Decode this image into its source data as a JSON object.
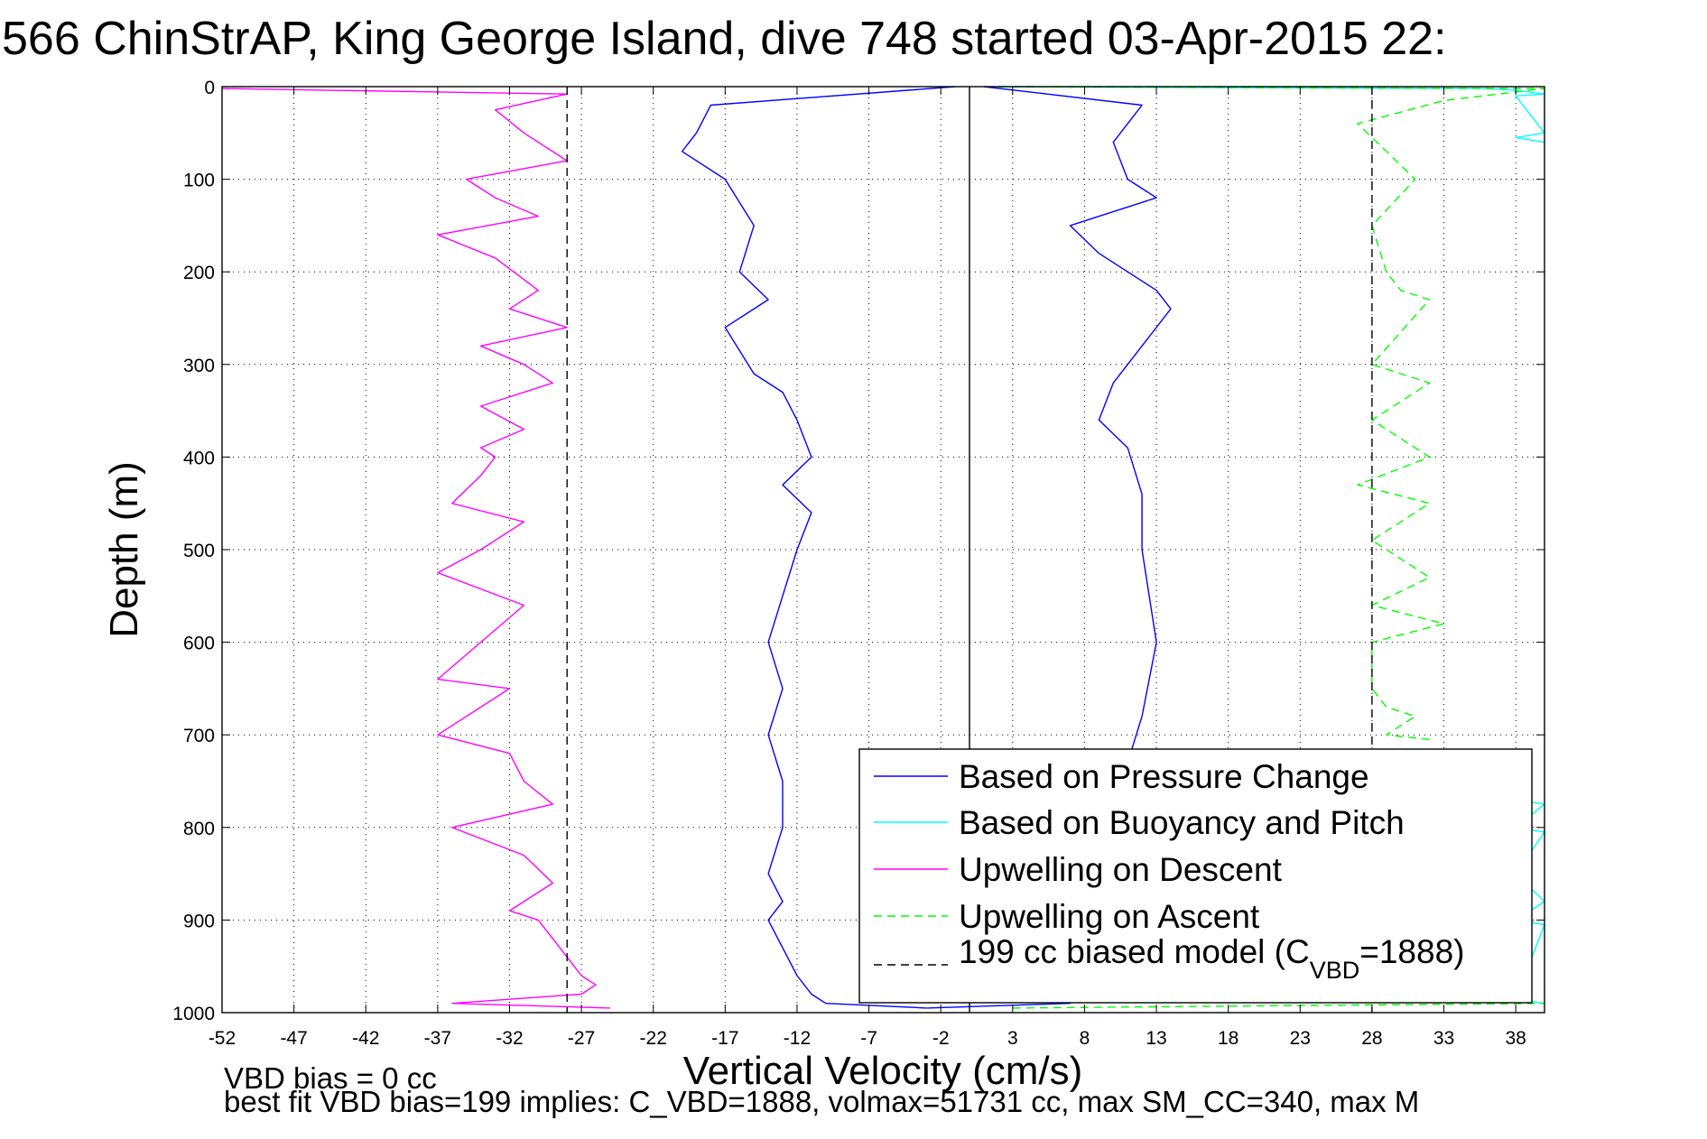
{
  "chart_data": {
    "type": "line",
    "title": "566 ChinStrAP, King George Island, dive 748 started 03-Apr-2015 22:",
    "xlabel": "Vertical Velocity (cm/s)",
    "ylabel": "Depth (m)",
    "xlim": [
      -52,
      40
    ],
    "ylim": [
      0,
      1000
    ],
    "y_reversed": true,
    "grid": true,
    "xticks": [
      "-52",
      "-47",
      "-42",
      "-37",
      "-32",
      "-27",
      "-22",
      "-17",
      "-12",
      "-7",
      "-2",
      "3",
      "8",
      "13",
      "18",
      "23",
      "28",
      "33",
      "38"
    ],
    "yticks": [
      "0",
      "100",
      "200",
      "300",
      "400",
      "500",
      "600",
      "700",
      "800",
      "900",
      "1000"
    ],
    "legend_position": "bottom-right",
    "legend": [
      {
        "label": "Based on Pressure Change",
        "color": "#0000ff",
        "dash": "solid"
      },
      {
        "label": "Based on Buoyancy and Pitch",
        "color": "#00ffff",
        "dash": "solid"
      },
      {
        "label": "Upwelling on Descent",
        "color": "#ff00ff",
        "dash": "solid"
      },
      {
        "label": "Upwelling on Ascent",
        "color": "#00ff00",
        "dash": "dashed"
      },
      {
        "label_prefix": "199 cc biased model (C",
        "label_sub": "VBD",
        "label_suffix": "=1888)",
        "color": "#000000",
        "dash": "dashed"
      }
    ],
    "series": [
      {
        "color": "#ff00ff",
        "dash": "solid",
        "x": [
          -52,
          -28,
          -33,
          -31,
          -28,
          -35,
          -33,
          -30,
          -37,
          -33,
          -30,
          -32,
          -28,
          -34,
          -31,
          -29,
          -34,
          -31,
          -34,
          -33,
          -34,
          -36,
          -31,
          -34,
          -37,
          -31,
          -34,
          -37,
          -32,
          -37,
          -32,
          -31,
          -29,
          -36,
          -31,
          -29,
          -32,
          -30,
          -29,
          -28,
          -27,
          -26,
          -27,
          -36,
          -25
        ],
        "y": [
          2,
          8,
          25,
          50,
          80,
          100,
          120,
          140,
          160,
          185,
          220,
          240,
          260,
          280,
          300,
          320,
          345,
          370,
          390,
          400,
          420,
          450,
          470,
          500,
          525,
          560,
          600,
          640,
          650,
          700,
          720,
          750,
          775,
          800,
          830,
          860,
          890,
          900,
          920,
          940,
          960,
          970,
          980,
          990,
          995
        ]
      },
      {
        "color": "#0000ff",
        "dash": "solid",
        "x": [
          -1,
          -18,
          -19,
          -20,
          -17,
          -15,
          -16,
          -14,
          -17,
          -15,
          -13,
          -12,
          -11,
          -13,
          -11,
          -12,
          -13,
          -14,
          -13,
          -14,
          -13,
          -13,
          -14,
          -13,
          -14,
          -13,
          -12,
          -11,
          -10,
          -3
        ],
        "y": [
          0,
          20,
          50,
          70,
          100,
          150,
          200,
          230,
          260,
          310,
          330,
          360,
          400,
          430,
          460,
          500,
          550,
          600,
          650,
          700,
          750,
          800,
          850,
          880,
          900,
          930,
          960,
          980,
          990,
          995
        ]
      },
      {
        "color": "#0000ff",
        "dash": "solid",
        "x": [
          1,
          12,
          10,
          11,
          13,
          7,
          9,
          13,
          14,
          12,
          10,
          9,
          11,
          12,
          12,
          13,
          12,
          11
        ],
        "y": [
          0,
          20,
          60,
          100,
          120,
          150,
          180,
          220,
          240,
          280,
          320,
          360,
          390,
          440,
          500,
          600,
          680,
          730
        ]
      },
      {
        "color": "#0000ff",
        "dash": "solid",
        "x": [
          5,
          7,
          -3
        ],
        "y": [
          980,
          990,
          995
        ]
      },
      {
        "color": "#00ffff",
        "dash": "solid",
        "x": [
          2,
          36,
          38,
          40,
          38,
          40,
          38,
          40
        ],
        "y": [
          0,
          2,
          4,
          8,
          10,
          50,
          55,
          60
        ]
      },
      {
        "color": "#00ffff",
        "dash": "solid",
        "x": [
          38,
          40,
          38,
          40,
          38,
          40,
          38,
          40,
          38,
          40
        ],
        "y": [
          770,
          775,
          800,
          805,
          850,
          880,
          900,
          905,
          985,
          990
        ]
      },
      {
        "color": "#00ff00",
        "dash": "dashed",
        "x": [
          2,
          40,
          33,
          27,
          31,
          28,
          29,
          30,
          32,
          28,
          32,
          28,
          32,
          27,
          32,
          28,
          32,
          28,
          33,
          28,
          28,
          29,
          31,
          29,
          32
        ],
        "y": [
          0,
          2,
          15,
          40,
          100,
          150,
          200,
          220,
          230,
          300,
          320,
          360,
          400,
          430,
          450,
          490,
          530,
          560,
          580,
          600,
          650,
          670,
          680,
          700,
          705
        ]
      },
      {
        "color": "#00ff00",
        "dash": "dashed",
        "x": [
          3,
          40
        ],
        "y": [
          995,
          990
        ]
      },
      {
        "color": "#000000",
        "dash": "dashed",
        "x": [
          -28,
          -28
        ],
        "y": [
          0,
          1000
        ]
      },
      {
        "color": "#000000",
        "dash": "dashed",
        "x": [
          28,
          28
        ],
        "y": [
          0,
          1000
        ]
      },
      {
        "color": "#000000",
        "dash": "solid",
        "x": [
          0,
          0
        ],
        "y": [
          0,
          1000
        ]
      }
    ],
    "footer_lines": [
      "VBD bias = 0 cc",
      "best fit VBD bias=199 implies: C_VBD=1888, volmax=51731 cc, max SM_CC=340, max M"
    ]
  }
}
